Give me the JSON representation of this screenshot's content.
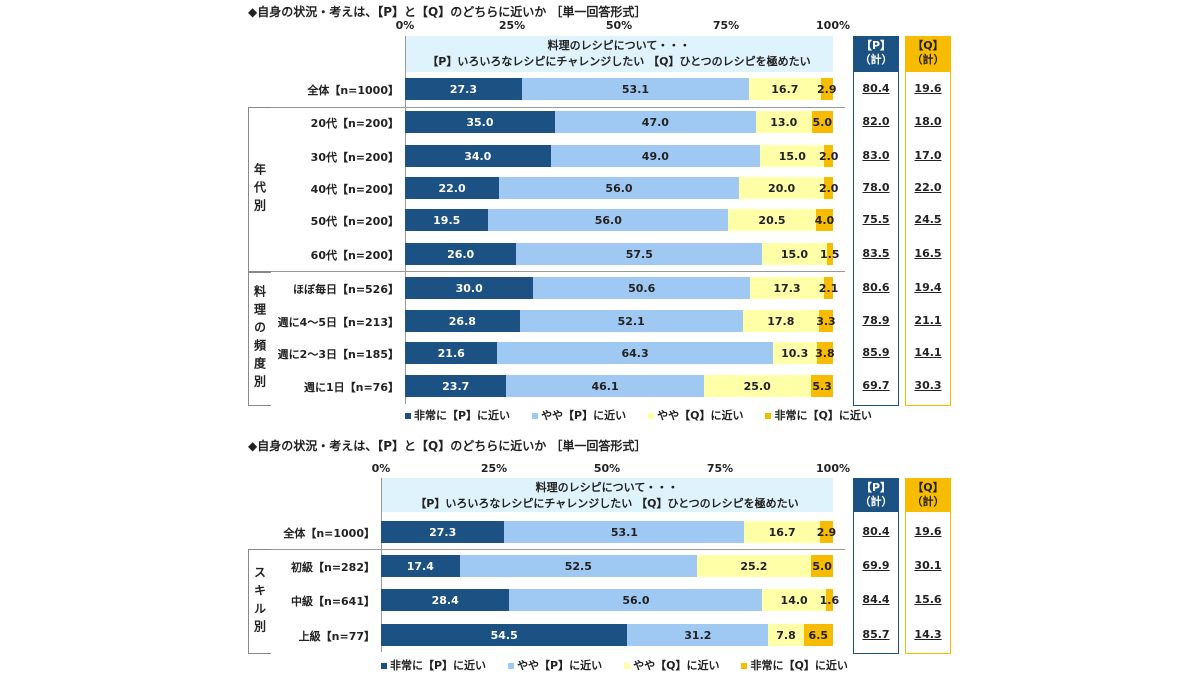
{
  "chart_data": [
    {
      "type": "bar",
      "stacked": true,
      "orientation": "horizontal",
      "title": "◆自身の状況・考えは、【P】と【Q】のどちらに近いか ［単一回答形式］",
      "header": [
        "料理のレシピについて・・・",
        "【P】いろいろなレシピにチャレンジしたい 【Q】ひとつのレシピを極めたい"
      ],
      "x_ticks": [
        "0%",
        "25%",
        "50%",
        "75%",
        "100%"
      ],
      "xlim": [
        0,
        100
      ],
      "total_headers": {
        "p": [
          "【P】",
          "（計）"
        ],
        "q": [
          "【Q】",
          "（計）"
        ]
      },
      "groups": [
        {
          "label": "年代別",
          "start": 1,
          "end": 5
        },
        {
          "label": "料理の頻度別",
          "start": 6,
          "end": 9
        }
      ],
      "categories": [
        "全体【n=1000】",
        "20代【n=200】",
        "30代【n=200】",
        "40代【n=200】",
        "50代【n=200】",
        "60代【n=200】",
        "ほぼ毎日【n=526】",
        "週に4～5日【n=213】",
        "週に2～3日【n=185】",
        "週に1日【n=76】"
      ],
      "series": [
        {
          "name": "非常に【P】に近い",
          "color": "#1c5183",
          "values": [
            27.3,
            35.0,
            34.0,
            22.0,
            19.5,
            26.0,
            30.0,
            26.8,
            21.6,
            23.7
          ]
        },
        {
          "name": "やや【P】に近い",
          "color": "#9fc9f3",
          "values": [
            53.1,
            47.0,
            49.0,
            56.0,
            56.0,
            57.5,
            50.6,
            52.1,
            64.3,
            46.1
          ]
        },
        {
          "name": "やや【Q】に近い",
          "color": "#ffffa8",
          "values": [
            16.7,
            13.0,
            15.0,
            20.0,
            20.5,
            15.0,
            17.3,
            17.8,
            10.3,
            25.0
          ]
        },
        {
          "name": "非常に【Q】に近い",
          "color": "#f7bb00",
          "values": [
            2.9,
            5.0,
            2.0,
            2.0,
            4.0,
            1.5,
            2.1,
            3.3,
            3.8,
            5.3
          ]
        }
      ],
      "p_total": [
        "80.4",
        "82.0",
        "83.0",
        "78.0",
        "75.5",
        "83.5",
        "80.6",
        "78.9",
        "85.9",
        "69.7"
      ],
      "q_total": [
        "19.6",
        "18.0",
        "17.0",
        "22.0",
        "24.5",
        "16.5",
        "19.4",
        "21.1",
        "14.1",
        "30.3"
      ]
    },
    {
      "type": "bar",
      "stacked": true,
      "orientation": "horizontal",
      "title": "◆自身の状況・考えは、【P】と【Q】のどちらに近いか ［単一回答形式］",
      "header": [
        "料理のレシピについて・・・",
        "【P】いろいろなレシピにチャレンジしたい 【Q】ひとつのレシピを極めたい"
      ],
      "x_ticks": [
        "0%",
        "25%",
        "50%",
        "75%",
        "100%"
      ],
      "xlim": [
        0,
        100
      ],
      "total_headers": {
        "p": [
          "【P】",
          "（計）"
        ],
        "q": [
          "【Q】",
          "（計）"
        ]
      },
      "groups": [
        {
          "label": "スキル別",
          "start": 1,
          "end": 3
        }
      ],
      "categories": [
        "全体【n=1000】",
        "初級【n=282】",
        "中級【n=641】",
        "上級【n=77】"
      ],
      "series": [
        {
          "name": "非常に【P】に近い",
          "color": "#1c5183",
          "values": [
            27.3,
            17.4,
            28.4,
            54.5
          ]
        },
        {
          "name": "やや【P】に近い",
          "color": "#9fc9f3",
          "values": [
            53.1,
            52.5,
            56.0,
            31.2
          ]
        },
        {
          "name": "やや【Q】に近い",
          "color": "#ffffa8",
          "values": [
            16.7,
            25.2,
            14.0,
            7.8
          ]
        },
        {
          "name": "非常に【Q】に近い",
          "color": "#f7bb00",
          "values": [
            2.9,
            5.0,
            1.6,
            6.5
          ]
        }
      ],
      "p_total": [
        "80.4",
        "69.9",
        "84.4",
        "85.7"
      ],
      "q_total": [
        "19.6",
        "30.1",
        "15.6",
        "14.3"
      ]
    }
  ]
}
